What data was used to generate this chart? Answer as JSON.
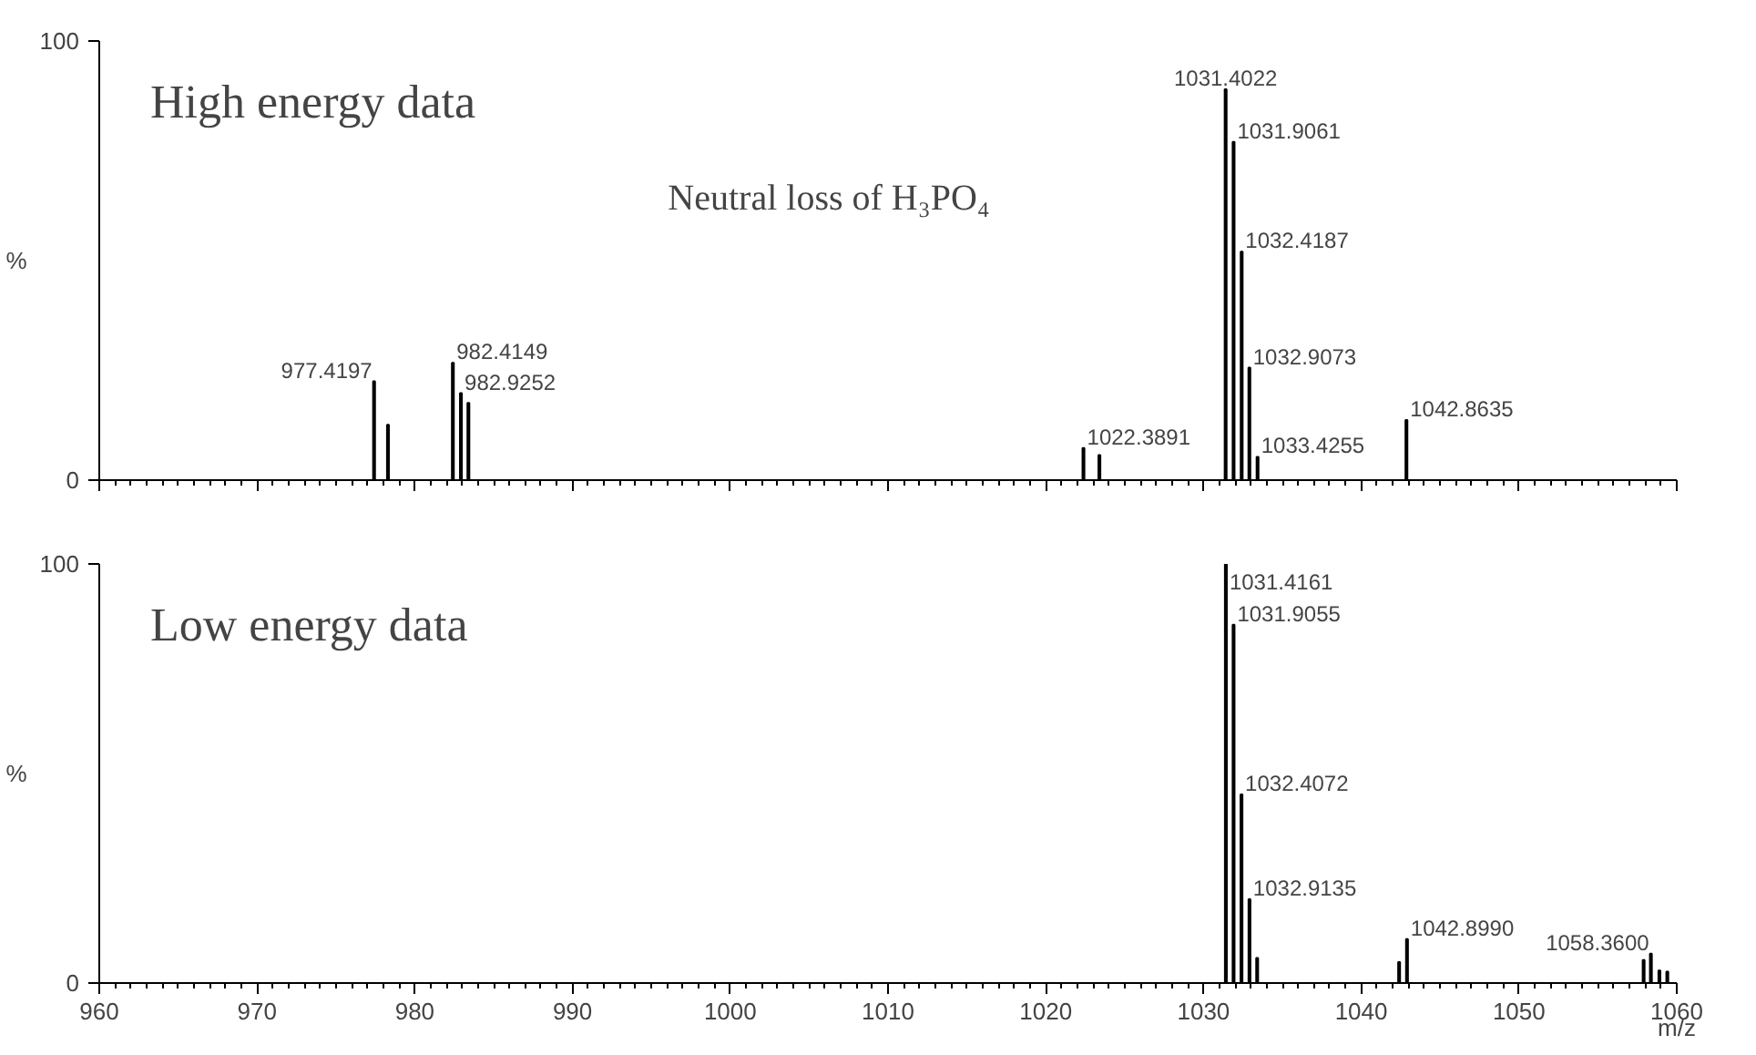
{
  "chart_data": [
    {
      "type": "bar",
      "x": [
        977.4197,
        978.3,
        982.4149,
        982.9252,
        983.4,
        1022.3891,
        1023.4,
        1031.4022,
        1031.9061,
        1032.4187,
        1032.9073,
        1033.4255,
        1042.8635
      ],
      "values": [
        22.5,
        12.6,
        26.7,
        19.8,
        17.6,
        7.3,
        5.7,
        89,
        77,
        52,
        25.6,
        5.3,
        13.7
      ],
      "color": "#000000",
      "xlim": [
        960,
        1060
      ],
      "ylim": [
        0,
        100
      ],
      "xticks": [
        960,
        970,
        980,
        990,
        1000,
        1010,
        1020,
        1030,
        1040,
        1050,
        1060
      ],
      "yticks": [
        0,
        100
      ],
      "ylabel": "%",
      "tick_labels": "y",
      "grid": false,
      "annotations": [
        "High energy data",
        "Neutral loss of H₃PO₄",
        {
          "text": "977.4197",
          "x": 977.4197,
          "y": 22.5
        },
        {
          "text": "982.4149",
          "x": 982.4149,
          "y": 26.7
        },
        {
          "text": "982.9252",
          "x": 982.9252,
          "y": 19.8
        },
        {
          "text": "1022.3891",
          "x": 1022.3891,
          "y": 7.3
        },
        {
          "text": "1031.4022",
          "x": 1031.4022,
          "y": 89
        },
        {
          "text": "1031.9061",
          "x": 1031.9061,
          "y": 77
        },
        {
          "text": "1032.4187",
          "x": 1032.4187,
          "y": 52
        },
        {
          "text": "1032.9073",
          "x": 1032.9073,
          "y": 25.6
        },
        {
          "text": "1033.4255",
          "x": 1033.4255,
          "y": 5.3
        },
        {
          "text": "1042.8635",
          "x": 1042.8635,
          "y": 13.7
        }
      ]
    },
    {
      "type": "bar",
      "x": [
        1031.4161,
        1031.9055,
        1032.4072,
        1032.9135,
        1033.4,
        1042.4,
        1042.899,
        1057.9,
        1058.36,
        1058.9,
        1059.4
      ],
      "values": [
        100,
        85.5,
        45,
        20,
        6,
        5,
        10.5,
        5.5,
        7,
        3,
        2.7
      ],
      "color": "#000000",
      "xlim": [
        960,
        1060
      ],
      "ylim": [
        0,
        100
      ],
      "xticks": [
        960,
        970,
        980,
        990,
        1000,
        1010,
        1020,
        1030,
        1040,
        1050,
        1060
      ],
      "yticks": [
        0,
        100
      ],
      "ylabel": "%",
      "xlabel": "m/z",
      "grid": false,
      "annotations": [
        "Low energy data",
        {
          "text": "1031.4161",
          "x": 1031.4161,
          "y": 100
        },
        {
          "text": "1031.9055",
          "x": 1031.9055,
          "y": 85.5
        },
        {
          "text": "1032.4072",
          "x": 1032.4072,
          "y": 45
        },
        {
          "text": "1032.9135",
          "x": 1032.9135,
          "y": 20
        },
        {
          "text": "1042.8990",
          "x": 1042.899,
          "y": 10.5
        },
        {
          "text": "1058.3600",
          "x": 1058.36,
          "y": 7
        }
      ]
    }
  ]
}
